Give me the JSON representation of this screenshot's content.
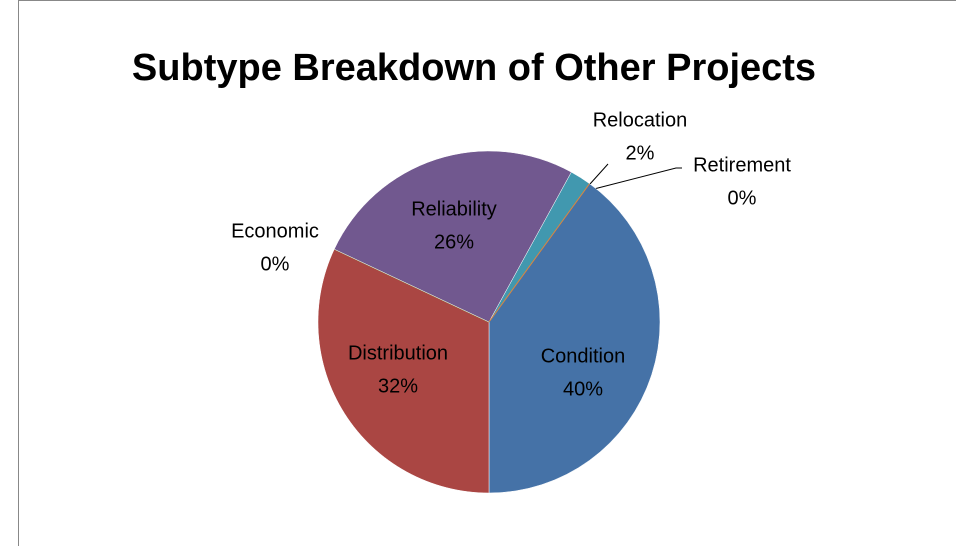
{
  "chart_data": {
    "type": "pie",
    "title": "Subtype Breakdown of Other Projects",
    "categories": [
      "Condition",
      "Distribution",
      "Economic",
      "Reliability",
      "Relocation",
      "Retirement"
    ],
    "values": [
      40,
      32,
      0,
      26,
      2,
      0
    ],
    "value_labels": [
      "40%",
      "32%",
      "0%",
      "26%",
      "2%",
      "0%"
    ],
    "colors": [
      "#4572a7",
      "#aa4643",
      "#89a54e",
      "#71588f",
      "#4198af",
      "#db843d"
    ]
  }
}
